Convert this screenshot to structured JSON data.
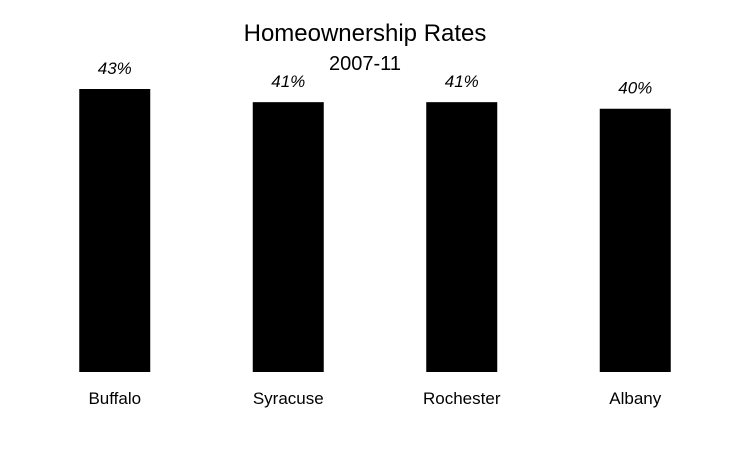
{
  "chart_data": {
    "type": "bar",
    "title": "Homeownership Rates",
    "subtitle": "2007-11",
    "categories": [
      "Buffalo",
      "Syracuse",
      "Rochester",
      "Albany"
    ],
    "values": [
      43,
      41,
      41,
      40
    ],
    "value_labels": [
      "43%",
      "41%",
      "41%",
      "40%"
    ],
    "xlabel": "",
    "ylabel": "",
    "ylim": [
      0,
      43
    ],
    "grid": false,
    "legend": "none",
    "bar_color": "#000000"
  }
}
